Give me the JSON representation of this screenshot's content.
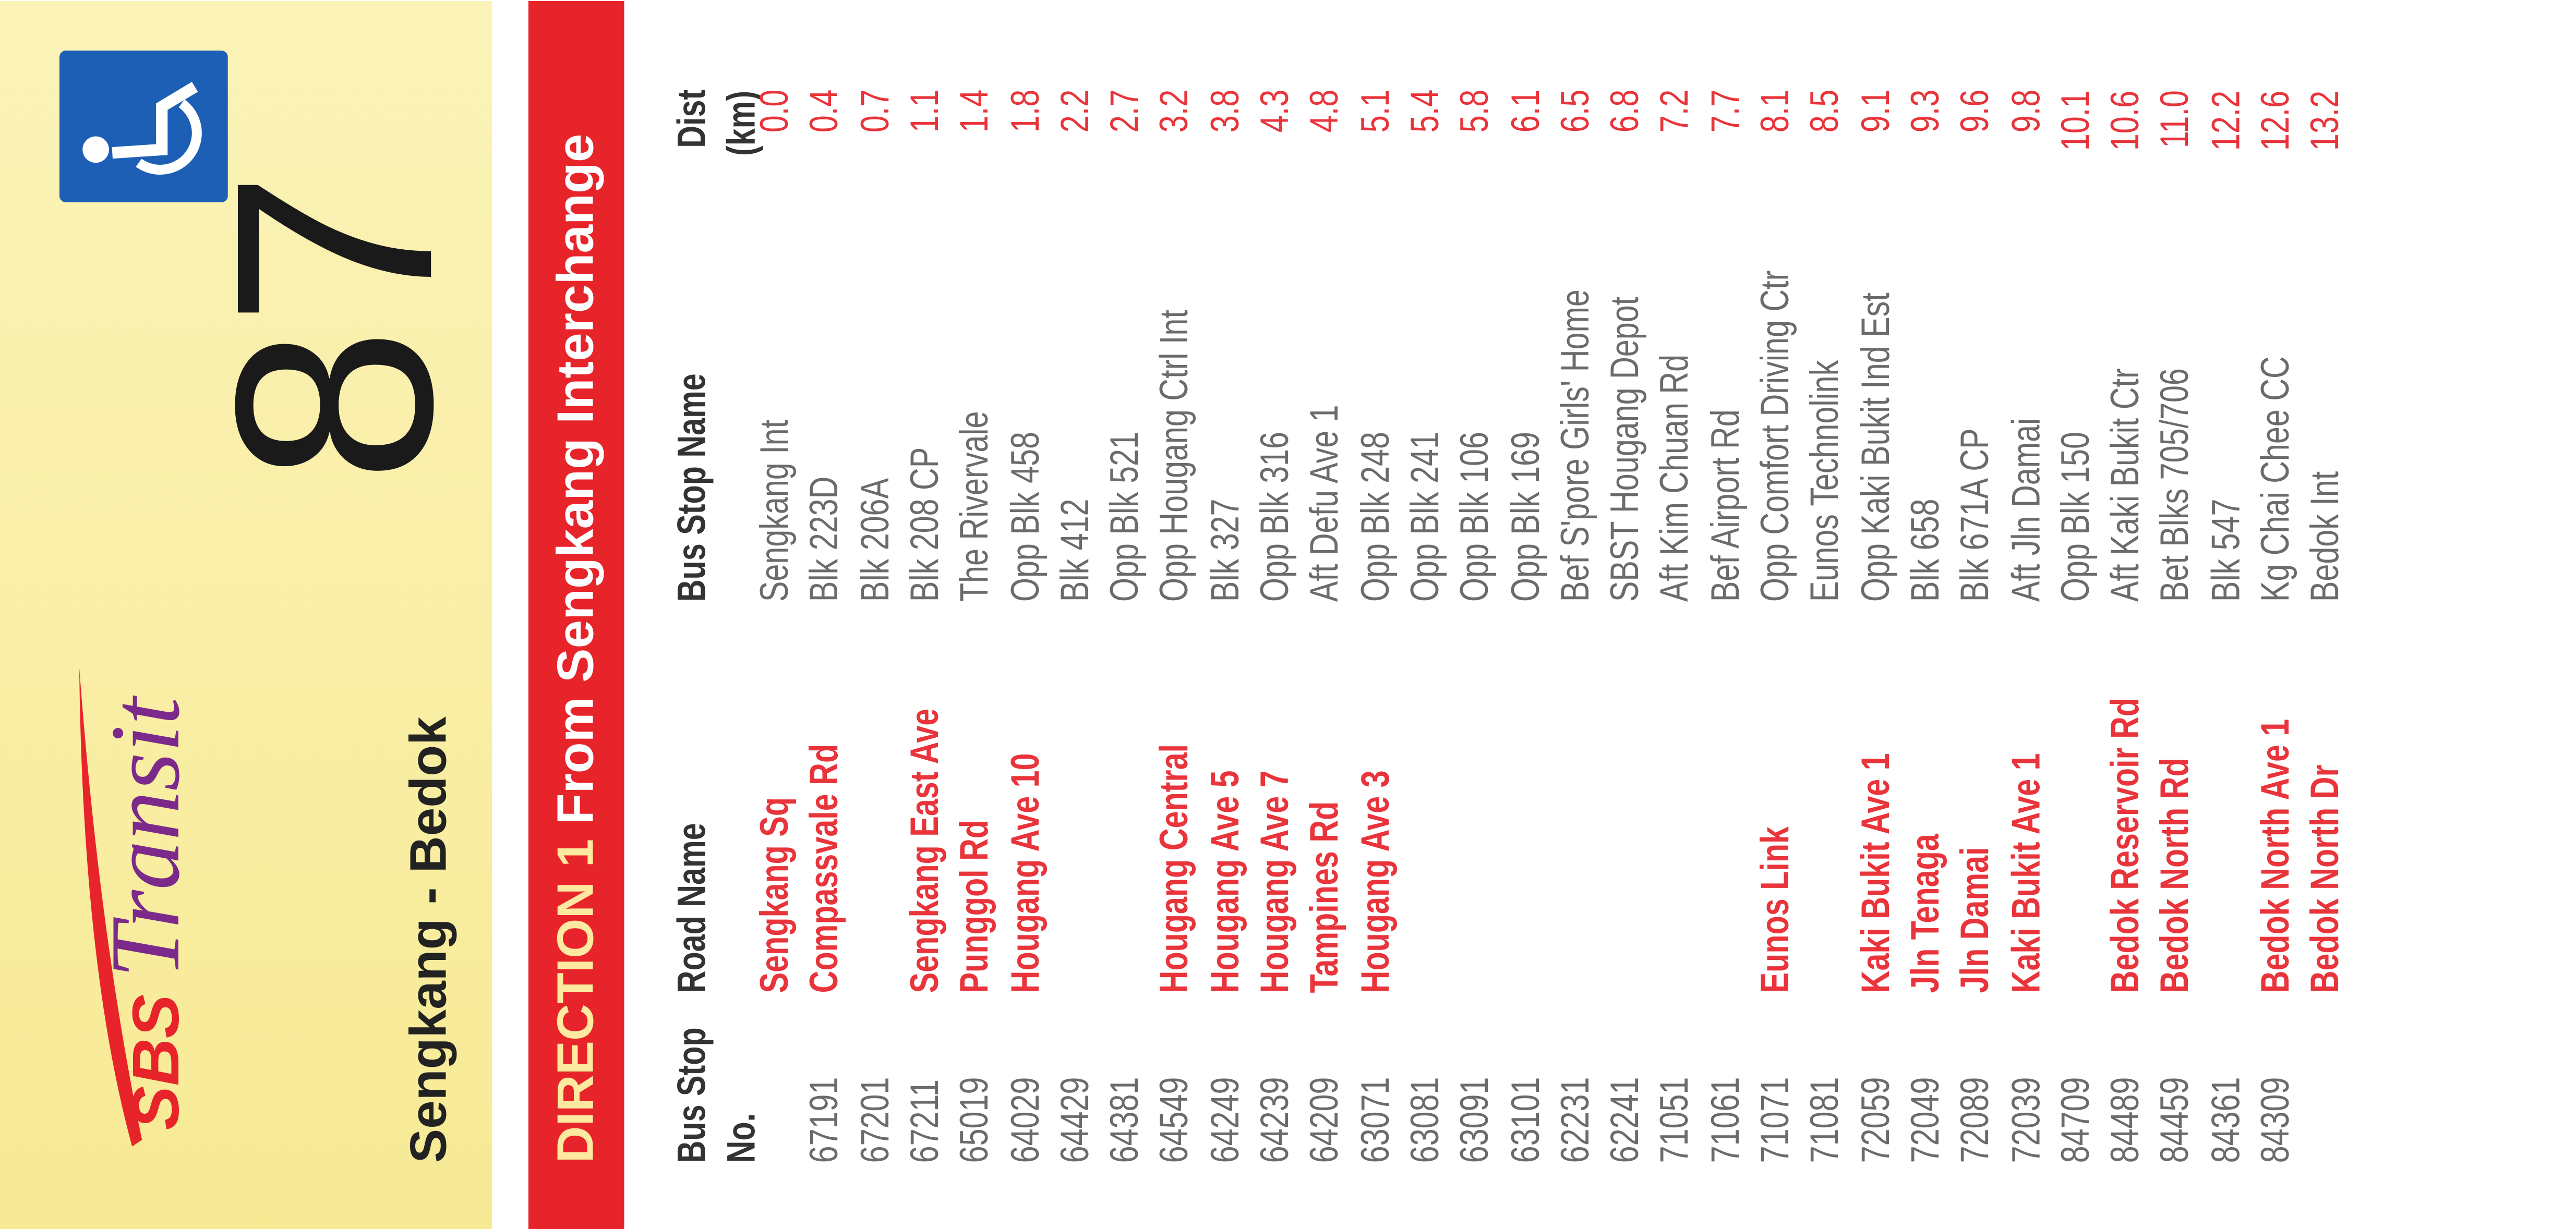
{
  "header": {
    "logo_sbs": "SBS",
    "logo_transit": "Transit",
    "route": "Sengkang - Bedok",
    "service": "87"
  },
  "direction": {
    "label": "DIRECTION 1",
    "text": "From Sengkang Interchange"
  },
  "table": {
    "columns": [
      [
        "Bus Stop",
        "No."
      ],
      [
        "Road Name"
      ],
      [
        "Bus Stop Name"
      ],
      [
        "Dist",
        "(km)"
      ]
    ],
    "rows": [
      [
        null,
        "Sengkang Sq",
        "Sengkang Int",
        "0.0"
      ],
      [
        "67191",
        "Compassvale Rd",
        "Blk 223D",
        "0.4"
      ],
      [
        "67201",
        null,
        "Blk 206A",
        "0.7"
      ],
      [
        "67211",
        "Sengkang East Ave",
        "Blk 208 CP",
        "1.1"
      ],
      [
        "65019",
        "Punggol Rd",
        "The Rivervale",
        "1.4"
      ],
      [
        "64029",
        "Hougang Ave 10",
        "Opp Blk 458",
        "1.8"
      ],
      [
        "64429",
        null,
        "Blk 412",
        "2.2"
      ],
      [
        "64381",
        null,
        "Opp Blk 521",
        "2.7"
      ],
      [
        "64549",
        "Hougang Central",
        "Opp Hougang Ctrl Int",
        "3.2"
      ],
      [
        "64249",
        "Hougang Ave 5",
        "Blk 327",
        "3.8"
      ],
      [
        "64239",
        "Hougang Ave 7",
        "Opp Blk 316",
        "4.3"
      ],
      [
        "64209",
        "Tampines Rd",
        "Aft Defu Ave 1",
        "4.8"
      ],
      [
        "63071",
        "Hougang Ave 3",
        "Opp Blk 248",
        "5.1"
      ],
      [
        "63081",
        null,
        "Opp Blk 241",
        "5.4"
      ],
      [
        "63091",
        null,
        "Opp Blk 106",
        "5.8"
      ],
      [
        "63101",
        null,
        "Opp Blk 169",
        "6.1"
      ],
      [
        "62231",
        null,
        "Bef S'pore Girls' Home",
        "6.5"
      ],
      [
        "62241",
        null,
        "SBST Hougang Depot",
        "6.8"
      ],
      [
        "71051",
        null,
        "Aft Kim Chuan Rd",
        "7.2"
      ],
      [
        "71061",
        null,
        "Bef Airport Rd",
        "7.7"
      ],
      [
        "71071",
        "Eunos Link",
        "Opp Comfort Driving Ctr",
        "8.1"
      ],
      [
        "71081",
        null,
        "Eunos Technolink",
        "8.5"
      ],
      [
        "72059",
        "Kaki Bukit Ave 1",
        "Opp Kaki Bukit Ind Est",
        "9.1"
      ],
      [
        "72049",
        "Jln Tenaga",
        "Blk 658",
        "9.3"
      ],
      [
        "72089",
        "Jln Damai",
        "Blk 671A CP",
        "9.6"
      ],
      [
        "72039",
        "Kaki Bukit Ave 1",
        "Aft Jln Damai",
        "9.8"
      ],
      [
        "84709",
        null,
        "Opp Blk 150",
        "10.1"
      ],
      [
        "84489",
        "Bedok Reservoir Rd",
        "Aft Kaki Bukit Ctr",
        "10.6"
      ],
      [
        "84459",
        "Bedok North Rd",
        "Bet Blks 705/706",
        "11.0"
      ],
      [
        "84361",
        null,
        "Blk 547",
        "12.2"
      ],
      [
        "84309",
        "Bedok North Ave 1",
        "Kg Chai Chee CC",
        "12.6"
      ],
      [
        null,
        "Bedok North Dr",
        "Bedok Int",
        "13.2"
      ]
    ]
  }
}
